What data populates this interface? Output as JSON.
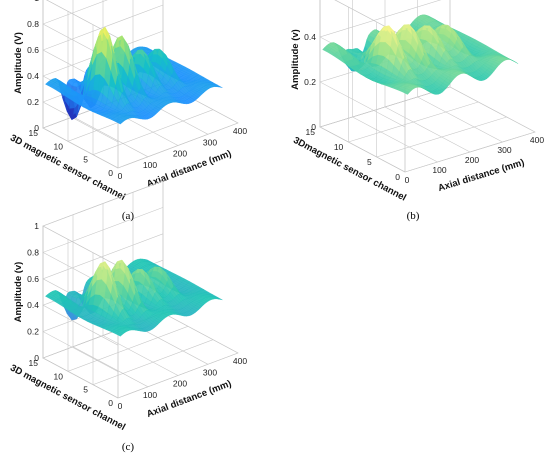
{
  "figure": {
    "captions": [
      "(a)",
      "(b)",
      "(c)"
    ]
  },
  "chart_data": [
    {
      "type": "surface",
      "panel": "(a)",
      "zlabel": "Amplitude (V)",
      "ylabel": "3D magnetic sensor channel",
      "xlabel": "Axial distance (mm)",
      "zticks": [
        "0",
        "0.2",
        "0.4",
        "0.6",
        "0.8",
        "1"
      ],
      "yticks": [
        "0",
        "5",
        "10",
        "15"
      ],
      "xticks": [
        "0",
        "100",
        "200",
        "300",
        "400"
      ],
      "xlim": [
        0,
        400
      ],
      "ylim": [
        0,
        15
      ],
      "zlim": [
        0,
        1
      ],
      "base_amplitude": 0.32,
      "peaks": [
        {
          "x": 80,
          "amplitude": 0.85
        },
        {
          "x": 140,
          "amplitude": 0.75
        },
        {
          "x": 205,
          "amplitude": 0.58
        },
        {
          "x": 265,
          "amplitude": 0.52
        }
      ],
      "colormap": [
        "#2233bb",
        "#1e90ff",
        "#16c0c8",
        "#8ee07a",
        "#fff35c"
      ]
    },
    {
      "type": "surface",
      "panel": "(b)",
      "zlabel": "Amplitude (v)",
      "ylabel": "3Dmagnetic sensor channel",
      "xlabel": "Axial distance (mm)",
      "zticks": [
        "0",
        "0.2",
        "0.4",
        "0.6"
      ],
      "yticks": [
        "0",
        "5",
        "10",
        "15"
      ],
      "xticks": [
        "0",
        "100",
        "200",
        "300",
        "400"
      ],
      "xlim": [
        0,
        400
      ],
      "ylim": [
        0,
        15
      ],
      "zlim": [
        0,
        0.6
      ],
      "base_amplitude": 0.33,
      "peaks": [
        {
          "x": 80,
          "amplitude": 0.5
        },
        {
          "x": 145,
          "amplitude": 0.5
        },
        {
          "x": 205,
          "amplitude": 0.46
        },
        {
          "x": 265,
          "amplitude": 0.42
        }
      ],
      "colormap": [
        "#5a3db5",
        "#3c8fe0",
        "#20c5b5",
        "#9ce28a",
        "#fff68a"
      ]
    },
    {
      "type": "surface",
      "panel": "(c)",
      "zlabel": "Amplitude (v)",
      "ylabel": "3D magnetic sensor channel",
      "xlabel": "Axial distance (mm)",
      "zticks": [
        "0",
        "0.2",
        "0.4",
        "0.6",
        "0.8",
        "1"
      ],
      "yticks": [
        "0",
        "5",
        "10",
        "15"
      ],
      "xticks": [
        "0",
        "100",
        "200",
        "300",
        "400"
      ],
      "xlim": [
        0,
        400
      ],
      "ylim": [
        0,
        15
      ],
      "zlim": [
        0,
        1
      ],
      "base_amplitude": 0.45,
      "peaks": [
        {
          "x": 80,
          "amplitude": 0.8
        },
        {
          "x": 140,
          "amplitude": 0.78
        },
        {
          "x": 205,
          "amplitude": 0.65
        },
        {
          "x": 265,
          "amplitude": 0.6
        }
      ],
      "colormap": [
        "#5a3db5",
        "#3c8fe0",
        "#20c5b5",
        "#9ce28a",
        "#fff68a"
      ]
    }
  ]
}
